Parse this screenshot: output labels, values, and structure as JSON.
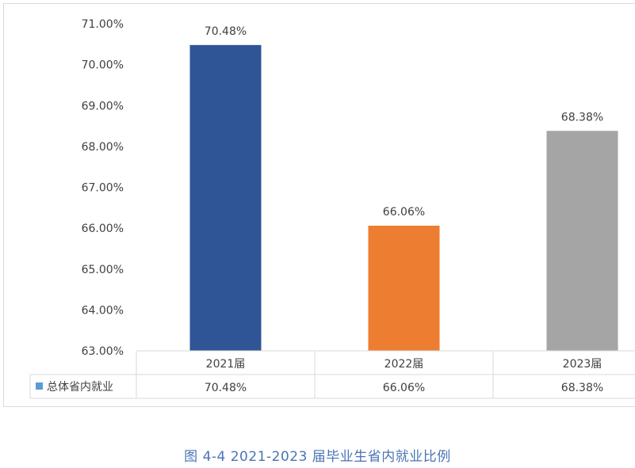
{
  "caption": "图 4-4 2021-2023 届毕业生省内就业比例",
  "colors": {
    "bar_2021": "#2f5597",
    "bar_2022": "#ed7d31",
    "bar_2023": "#a5a5a5",
    "legend_swatch": "#5b9bd5",
    "caption": "#4a74b5"
  },
  "chart_data": {
    "type": "bar",
    "categories": [
      "2021届",
      "2022届",
      "2023届"
    ],
    "series": [
      {
        "name": "总体省内就业",
        "values": [
          70.48,
          66.06,
          68.38
        ],
        "labels": [
          "70.48%",
          "66.06%",
          "68.38%"
        ]
      }
    ],
    "ylim": [
      63,
      71
    ],
    "yticks": [
      "63.00%",
      "64.00%",
      "65.00%",
      "66.00%",
      "67.00%",
      "68.00%",
      "69.00%",
      "70.00%",
      "71.00%"
    ],
    "data_table": true,
    "grid": false
  }
}
